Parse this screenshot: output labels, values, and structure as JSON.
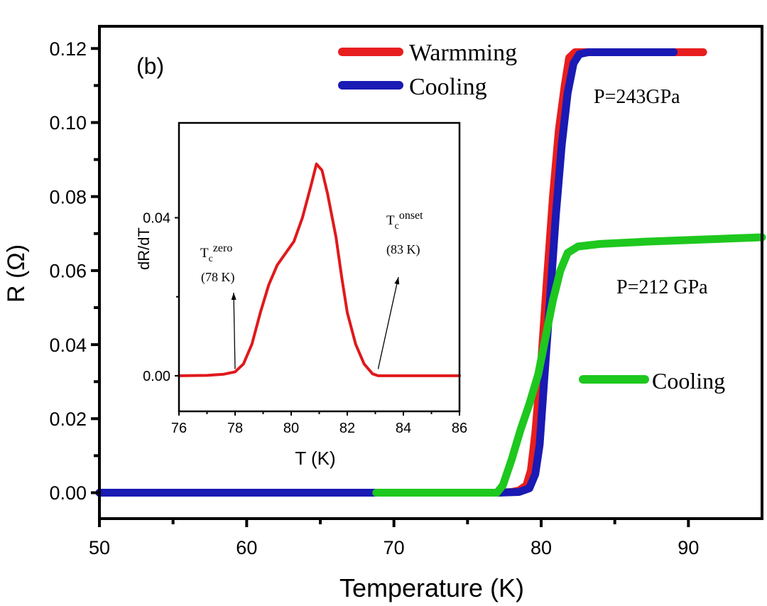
{
  "chart_data": [
    {
      "id": "main",
      "type": "line",
      "panel_label": "(b)",
      "title": "",
      "xlabel": "Temperature (K)",
      "ylabel": "R (Ω)",
      "xlim": [
        50,
        95
      ],
      "ylim": [
        -0.007,
        0.126
      ],
      "xticks": [
        50,
        60,
        70,
        80,
        90
      ],
      "xtick_labels": [
        "50",
        "60",
        "70",
        "80",
        "90"
      ],
      "yticks": [
        0.0,
        0.02,
        0.04,
        0.06,
        0.08,
        0.1,
        0.12
      ],
      "ytick_labels": [
        "0.00",
        "0.02",
        "0.04",
        "0.06",
        "0.08",
        "0.10",
        "0.12"
      ],
      "grid": false,
      "legend": {
        "placement": "top-center",
        "entries": [
          {
            "label": "Warmming",
            "color": "#e81e1e"
          },
          {
            "label": "Cooling",
            "color": "#1a1ab4"
          }
        ]
      },
      "annotations": [
        {
          "text": "P=243GPa",
          "x": 84.1,
          "y": 0.1085
        },
        {
          "text": "P=212 GPa",
          "x": 84.9,
          "y": 0.0555
        },
        {
          "text": "Cooling",
          "legend_for": "P=212 GPa series",
          "color": "#1ec81e"
        }
      ],
      "series": [
        {
          "name": "Warmming (P=243GPa)",
          "color": "#e81e1e",
          "x": [
            50,
            70,
            77,
            78,
            78.5,
            79,
            79.3,
            79.6,
            80,
            80.4,
            80.8,
            81.2,
            81.6,
            81.9,
            82.3,
            85,
            88,
            91
          ],
          "y": [
            0.0,
            0.0,
            0.0,
            0.0002,
            0.0006,
            0.002,
            0.006,
            0.016,
            0.035,
            0.058,
            0.08,
            0.098,
            0.11,
            0.1175,
            0.119,
            0.119,
            0.119,
            0.119
          ]
        },
        {
          "name": "Cooling (P=243GPa)",
          "color": "#1a1ab4",
          "x": [
            50,
            70,
            77,
            78.5,
            79.2,
            79.6,
            79.9,
            80.2,
            80.6,
            81,
            81.4,
            81.8,
            82.2,
            82.6,
            83.2,
            85,
            89
          ],
          "y": [
            0.0,
            0.0,
            0.0,
            0.0002,
            0.0012,
            0.005,
            0.013,
            0.03,
            0.052,
            0.075,
            0.094,
            0.108,
            0.116,
            0.1185,
            0.119,
            0.119,
            0.119
          ]
        },
        {
          "name": "Cooling (P=212 GPa)",
          "color": "#1ec81e",
          "x": [
            68.8,
            72,
            75,
            77,
            77.4,
            78,
            78.6,
            79.2,
            79.8,
            80.3,
            80.8,
            81.3,
            81.8,
            82.5,
            84,
            87,
            91,
            95
          ],
          "y": [
            0.0,
            0.0,
            0.0,
            0.0,
            0.002,
            0.009,
            0.017,
            0.024,
            0.032,
            0.042,
            0.052,
            0.06,
            0.0648,
            0.0665,
            0.0672,
            0.0678,
            0.0684,
            0.069
          ]
        }
      ]
    },
    {
      "id": "inset",
      "type": "line",
      "title": "",
      "xlabel": "T (K)",
      "ylabel": "dR/dT",
      "xlim": [
        76,
        86
      ],
      "ylim": [
        -0.009,
        0.064
      ],
      "xticks": [
        76,
        78,
        80,
        82,
        84,
        86
      ],
      "xtick_labels": [
        "76",
        "78",
        "80",
        "82",
        "84",
        "86"
      ],
      "yticks": [
        0.0,
        0.04
      ],
      "ytick_labels": [
        "0.00",
        "0.04"
      ],
      "grid": false,
      "annotations": [
        {
          "text_main": "T",
          "sub": "c",
          "sup": "zero",
          "value": "(78 K)",
          "arrow_to": [
            78.0,
            0.001
          ]
        },
        {
          "text_main": "T",
          "sub": "c",
          "sup": "onset",
          "value": "(83 K)",
          "arrow_to": [
            83.1,
            0.001
          ]
        }
      ],
      "series": [
        {
          "name": "dR/dT",
          "color": "#e0191b",
          "x": [
            76,
            77,
            77.6,
            78,
            78.3,
            78.6,
            78.9,
            79.2,
            79.5,
            79.8,
            80.1,
            80.4,
            80.7,
            80.9,
            81.1,
            81.3,
            81.6,
            81.8,
            82.0,
            82.3,
            82.6,
            82.9,
            83.1,
            84,
            85,
            86
          ],
          "y": [
            0.0,
            0.0001,
            0.0004,
            0.001,
            0.003,
            0.008,
            0.016,
            0.023,
            0.028,
            0.031,
            0.034,
            0.04,
            0.048,
            0.0536,
            0.052,
            0.046,
            0.035,
            0.025,
            0.016,
            0.008,
            0.003,
            0.0005,
            0.0,
            0.0,
            0.0,
            0.0
          ]
        }
      ]
    }
  ]
}
